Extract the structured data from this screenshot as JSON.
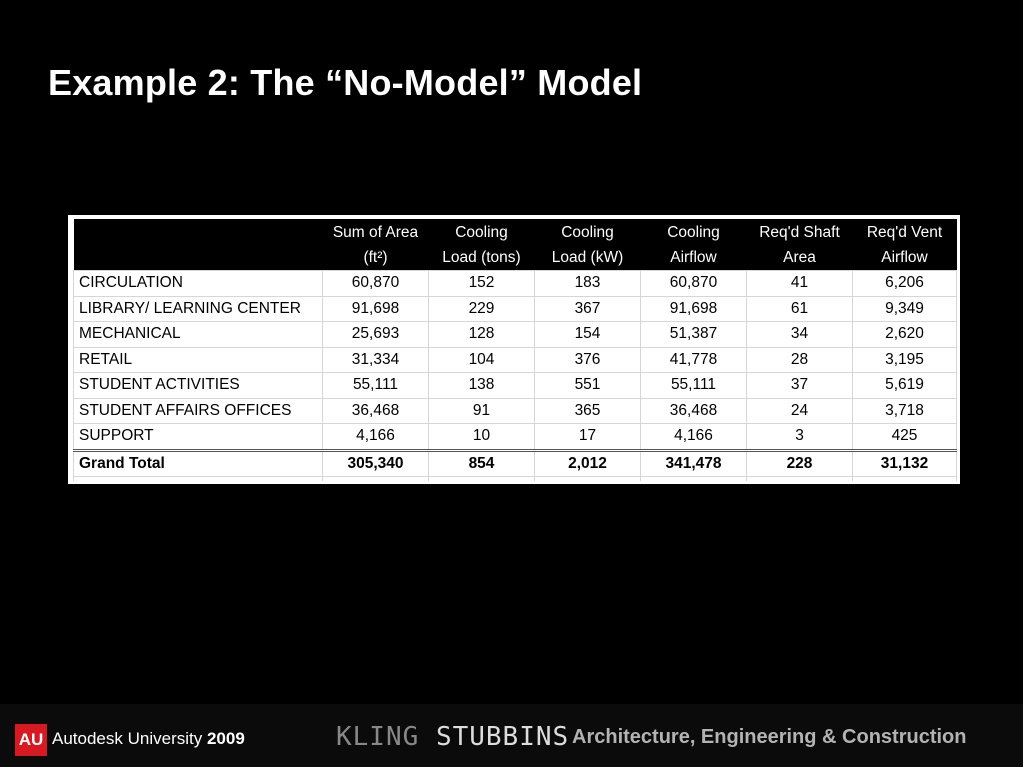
{
  "slide": {
    "title": "Example 2: The “No-Model” Model"
  },
  "table": {
    "headers": [
      [
        "",
        ""
      ],
      [
        "Sum of Area",
        "(ft²)"
      ],
      [
        "Cooling",
        "Load (tons)"
      ],
      [
        "Cooling",
        "Load (kW)"
      ],
      [
        "Cooling",
        "Airflow"
      ],
      [
        "Req'd Shaft",
        "Area"
      ],
      [
        "Req'd Vent",
        "Airflow"
      ]
    ],
    "rows": [
      [
        "CIRCULATION",
        "60,870",
        "152",
        "183",
        "60,870",
        "41",
        "6,206"
      ],
      [
        "LIBRARY/ LEARNING CENTER",
        "91,698",
        "229",
        "367",
        "91,698",
        "61",
        "9,349"
      ],
      [
        "MECHANICAL",
        "25,693",
        "128",
        "154",
        "51,387",
        "34",
        "2,620"
      ],
      [
        "RETAIL",
        "31,334",
        "104",
        "376",
        "41,778",
        "28",
        "3,195"
      ],
      [
        "STUDENT ACTIVITIES",
        "55,111",
        "138",
        "551",
        "55,111",
        "37",
        "5,619"
      ],
      [
        "STUDENT AFFAIRS OFFICES",
        "36,468",
        "91",
        "365",
        "36,468",
        "24",
        "3,718"
      ],
      [
        "SUPPORT",
        "4,166",
        "10",
        "17",
        "4,166",
        "3",
        "425"
      ]
    ],
    "total": [
      "Grand Total",
      "305,340",
      "854",
      "2,012",
      "341,478",
      "228",
      "31,132"
    ]
  },
  "footer": {
    "au_badge": "AU",
    "au_name": "Autodesk University",
    "au_year": "2009",
    "kling": "KLING",
    "stubbins": "STUBBINS",
    "tagline": "Architecture, Engineering & Construction"
  }
}
